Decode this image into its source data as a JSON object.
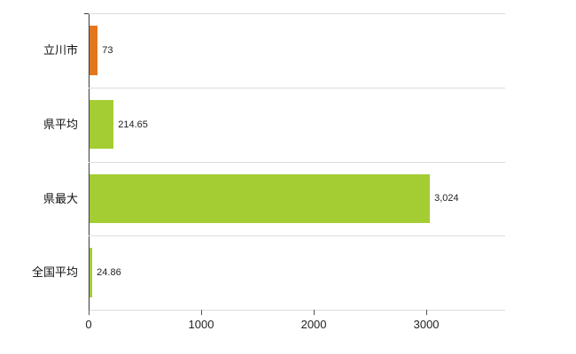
{
  "chart_data": {
    "type": "bar",
    "orientation": "horizontal",
    "title": "",
    "xlabel": "",
    "ylabel": "",
    "categories": [
      "立川市",
      "県平均",
      "県最大",
      "全国平均"
    ],
    "values": [
      73,
      214.65,
      3024,
      24.86
    ],
    "value_labels": [
      "73",
      "214.65",
      "3,024",
      "24.86"
    ],
    "bar_colors": [
      "#e4761b",
      "#a3cd32",
      "#a3cd32",
      "#a3cd32"
    ],
    "x_ticks": [
      0,
      1000,
      2000,
      3000
    ],
    "x_tick_labels": [
      "0",
      "1000",
      "2000",
      "3000"
    ],
    "xlim": [
      0,
      3700
    ],
    "grid": "horizontal category separators",
    "legend": "none",
    "colors": {
      "axis": "#3a3a3a",
      "gridline": "#dcdcdc",
      "text": "#222222",
      "background": "#ffffff"
    }
  }
}
